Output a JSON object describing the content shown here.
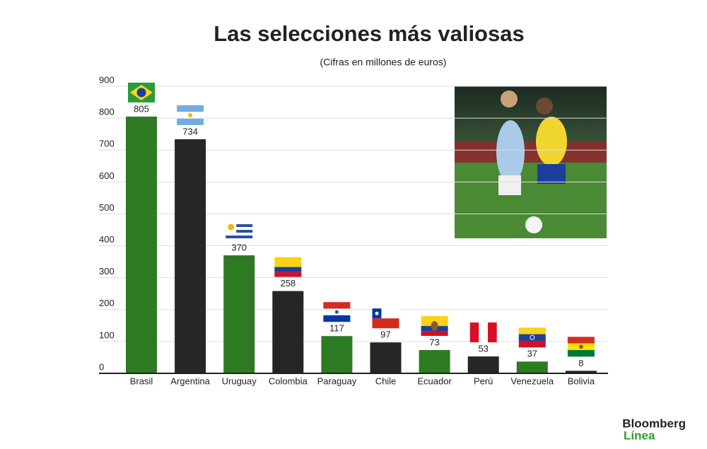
{
  "chart_data": {
    "type": "bar",
    "title": "Las selecciones más valiosas",
    "subtitle": "(Cifras en millones de euros)",
    "categories": [
      "Brasil",
      "Argentina",
      "Uruguay",
      "Colombia",
      "Paraguay",
      "Chile",
      "Ecuador",
      "Perú",
      "Venezuela",
      "Bolivia"
    ],
    "values": [
      805,
      734,
      370,
      258,
      117,
      97,
      73,
      53,
      37,
      8
    ],
    "colors": [
      "#2e7a22",
      "#262626",
      "#2e7a22",
      "#262626",
      "#2e7a22",
      "#262626",
      "#2e7a22",
      "#262626",
      "#2e7a22",
      "#262626"
    ],
    "ylim": [
      0,
      900
    ],
    "yticks": [
      0,
      100,
      200,
      300,
      400,
      500,
      600,
      700,
      800,
      900
    ],
    "grid": true
  },
  "branding": {
    "line1": "Bloomberg",
    "line2": "Línea"
  }
}
